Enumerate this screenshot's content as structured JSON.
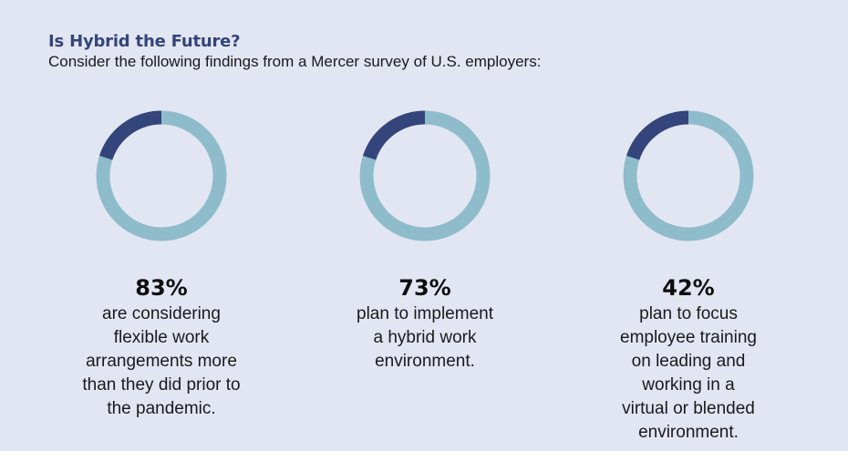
{
  "header": {
    "title": "Is Hybrid the Future?",
    "subtitle": "Consider the following findings from a Mercer survey of U.S. employers:"
  },
  "colors": {
    "background": "#e2e6f3",
    "ring_main": "#8fbccb",
    "ring_accent": "#33457a",
    "title": "#33457a"
  },
  "chart_data": [
    {
      "type": "pie",
      "value": 83,
      "value_label": "83%",
      "description_lines": [
        "are considering",
        "flexible work",
        "arrangements more",
        "than they did prior to",
        "the pandemic."
      ]
    },
    {
      "type": "pie",
      "value": 73,
      "value_label": "73%",
      "description_lines": [
        "plan to implement",
        "a hybrid work",
        "environment."
      ]
    },
    {
      "type": "pie",
      "value": 42,
      "value_label": "42%",
      "description_lines": [
        "plan to focus",
        "employee training",
        "on leading and",
        "working in a",
        "virtual or blended",
        "environment."
      ]
    }
  ]
}
